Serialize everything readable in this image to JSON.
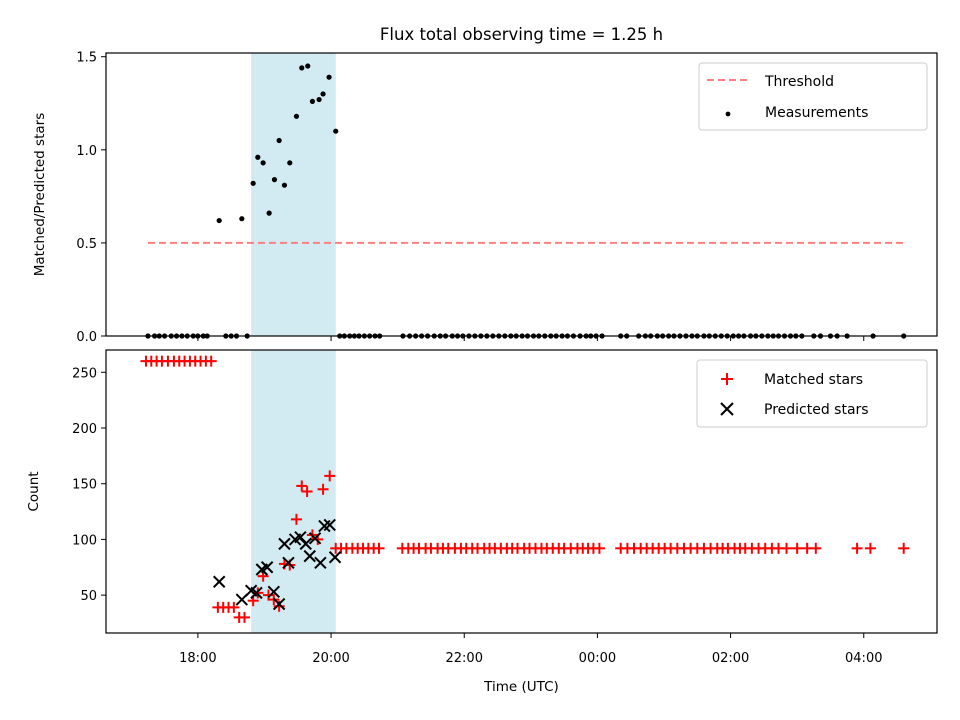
{
  "chart_data": {
    "title": "Flux total observing time = 1.25 h",
    "shared_x": {
      "label": "Time (UTC)",
      "unit": "hours since 00:00 of the first day",
      "range": [
        16.62,
        29.1
      ],
      "ticks": [
        {
          "value": 18,
          "label": "18:00"
        },
        {
          "value": 20,
          "label": "20:00"
        },
        {
          "value": 22,
          "label": "22:00"
        },
        {
          "value": 24,
          "label": "00:00"
        },
        {
          "value": 26,
          "label": "02:00"
        },
        {
          "value": 28,
          "label": "04:00"
        }
      ],
      "highlight_band": [
        18.8,
        20.07
      ]
    },
    "panels": [
      {
        "type": "scatter",
        "ylabel": "Matched/Predicted stars",
        "ylim": [
          0,
          1.52
        ],
        "yticks": [
          {
            "value": 0,
            "label": "0.0"
          },
          {
            "value": 0.5,
            "label": "0.5"
          },
          {
            "value": 1.0,
            "label": "1.0"
          },
          {
            "value": 1.5,
            "label": "1.5"
          }
        ],
        "legend_position": "upper right",
        "series": [
          {
            "name": "Threshold",
            "kind": "dashed-line",
            "color": "#ff7f7f",
            "x": [
              17.25,
              28.6
            ],
            "y": [
              0.5,
              0.5
            ]
          },
          {
            "name": "Measurements",
            "kind": "dot",
            "color": "#000000",
            "x": [
              18.32,
              18.66,
              18.83,
              18.9,
              18.98,
              19.07,
              19.15,
              19.22,
              19.3,
              19.38,
              19.48,
              19.56,
              19.65,
              19.72,
              19.82,
              19.88,
              19.97,
              20.07
            ],
            "y": [
              0.62,
              0.63,
              0.82,
              0.96,
              0.93,
              0.66,
              0.84,
              1.05,
              0.81,
              0.93,
              1.18,
              1.44,
              1.45,
              1.26,
              1.27,
              1.3,
              1.39,
              1.1
            ]
          },
          {
            "name": "",
            "kind": "dot",
            "color": "#000000",
            "x": [
              17.25,
              17.35,
              17.42,
              17.5,
              17.6,
              17.68,
              17.76,
              17.84,
              17.93,
              18.0,
              18.08,
              18.14,
              18.42,
              18.5,
              18.58,
              18.74,
              20.13,
              20.2,
              20.28,
              20.35,
              20.42,
              20.5,
              20.58,
              20.66,
              20.73,
              21.08,
              21.18,
              21.27,
              21.36,
              21.45,
              21.55,
              21.64,
              21.72,
              21.82,
              21.9,
              21.98,
              22.07,
              22.16,
              22.25,
              22.34,
              22.43,
              22.52,
              22.61,
              22.7,
              22.78,
              22.87,
              22.95,
              23.04,
              23.12,
              23.21,
              23.3,
              23.38,
              23.47,
              23.55,
              23.64,
              23.74,
              23.83,
              23.9,
              23.98,
              24.07,
              24.35,
              24.44,
              24.62,
              24.72,
              24.8,
              24.9,
              24.98,
              25.07,
              25.15,
              25.24,
              25.33,
              25.42,
              25.5,
              25.6,
              25.68,
              25.77,
              25.86,
              25.95,
              26.04,
              26.12,
              26.2,
              26.3,
              26.38,
              26.47,
              26.56,
              26.64,
              26.72,
              26.81,
              26.9,
              26.98,
              27.07,
              27.25,
              27.35,
              27.5,
              27.6,
              27.75,
              28.14,
              28.6
            ],
            "y": [
              0,
              0,
              0,
              0,
              0,
              0,
              0,
              0,
              0,
              0,
              0,
              0,
              0,
              0,
              0,
              0,
              0,
              0,
              0,
              0,
              0,
              0,
              0,
              0,
              0,
              0,
              0,
              0,
              0,
              0,
              0,
              0,
              0,
              0,
              0,
              0,
              0,
              0,
              0,
              0,
              0,
              0,
              0,
              0,
              0,
              0,
              0,
              0,
              0,
              0,
              0,
              0,
              0,
              0,
              0,
              0,
              0,
              0,
              0,
              0,
              0,
              0,
              0,
              0,
              0,
              0,
              0,
              0,
              0,
              0,
              0,
              0,
              0,
              0,
              0,
              0,
              0,
              0,
              0,
              0,
              0,
              0,
              0,
              0,
              0,
              0,
              0,
              0,
              0,
              0,
              0,
              0,
              0,
              0,
              0,
              0,
              0,
              0
            ]
          }
        ]
      },
      {
        "type": "scatter",
        "ylabel": "Count",
        "ylim": [
          16,
          270
        ],
        "yticks": [
          {
            "value": 50,
            "label": "50"
          },
          {
            "value": 100,
            "label": "100"
          },
          {
            "value": 150,
            "label": "150"
          },
          {
            "value": 200,
            "label": "200"
          },
          {
            "value": 250,
            "label": "250"
          }
        ],
        "legend_position": "upper right",
        "series": [
          {
            "name": "Matched stars",
            "kind": "plus",
            "color": "#ff0000",
            "x": [
              17.22,
              17.3,
              17.38,
              17.46,
              17.55,
              17.64,
              17.72,
              17.8,
              17.88,
              17.96,
              18.04,
              18.12,
              18.2,
              18.3,
              18.38,
              18.46,
              18.54,
              18.62,
              18.7,
              18.83,
              18.9,
              18.98,
              19.06,
              19.14,
              19.22,
              19.3,
              19.38,
              19.48,
              19.56,
              19.64,
              19.72,
              19.8,
              19.88,
              19.98,
              20.07,
              20.15,
              20.23,
              20.32,
              20.4,
              20.48,
              20.56,
              20.64,
              20.72,
              21.07,
              21.16,
              21.24,
              21.32,
              21.42,
              21.5,
              21.6,
              21.68,
              21.76,
              21.86,
              21.95,
              22.03,
              22.12,
              22.2,
              22.3,
              22.38,
              22.46,
              22.55,
              22.64,
              22.72,
              22.8,
              22.9,
              22.98,
              23.07,
              23.16,
              23.24,
              23.33,
              23.42,
              23.5,
              23.6,
              23.7,
              23.78,
              23.86,
              23.94,
              24.03,
              24.35,
              24.45,
              24.55,
              24.65,
              24.74,
              24.83,
              24.92,
              25.01,
              25.1,
              25.2,
              25.3,
              25.4,
              25.5,
              25.6,
              25.7,
              25.8,
              25.88,
              25.96,
              26.06,
              26.14,
              26.22,
              26.32,
              26.42,
              26.52,
              26.62,
              26.72,
              26.84,
              27.0,
              27.15,
              27.28,
              27.9,
              28.1,
              28.6
            ],
            "y": [
              260,
              260,
              260,
              260,
              260,
              260,
              260,
              260,
              260,
              260,
              260,
              260,
              260,
              39,
              39,
              39,
              39,
              30,
              30,
              45,
              52,
              67,
              50,
              46,
              40,
              78,
              77,
              118,
              148,
              143,
              104,
              100,
              145,
              157,
              92,
              92,
              92,
              92,
              92,
              92,
              92,
              92,
              92,
              92,
              92,
              92,
              92,
              92,
              92,
              92,
              92,
              92,
              92,
              92,
              92,
              92,
              92,
              92,
              92,
              92,
              92,
              92,
              92,
              92,
              92,
              92,
              92,
              92,
              92,
              92,
              92,
              92,
              92,
              92,
              92,
              92,
              92,
              92,
              92,
              92,
              92,
              92,
              92,
              92,
              92,
              92,
              92,
              92,
              92,
              92,
              92,
              92,
              92,
              92,
              92,
              92,
              92,
              92,
              92,
              92,
              92,
              92,
              92,
              92,
              92,
              92,
              92,
              92,
              92,
              92,
              92
            ]
          },
          {
            "name": "Predicted stars",
            "kind": "x",
            "color": "#000000",
            "x": [
              18.32,
              18.66,
              18.8,
              18.88,
              18.96,
              19.04,
              19.14,
              19.22,
              19.3,
              19.36,
              19.46,
              19.54,
              19.62,
              19.68,
              19.76,
              19.84,
              19.9,
              19.98,
              20.06
            ],
            "y": [
              62,
              46,
              54,
              52,
              73,
              75,
              53,
              42,
              96,
              79,
              100,
              102,
              96,
              85,
              101,
              79,
              112,
              113,
              84
            ]
          }
        ]
      }
    ]
  },
  "legend": {
    "top": {
      "threshold": "Threshold",
      "measurements": "Measurements"
    },
    "bottom": {
      "matched": "Matched stars",
      "predicted": "Predicted stars"
    }
  },
  "colors": {
    "band": "#add8e6",
    "threshold": "#ff7f7f",
    "matched": "#ff0000",
    "measure": "#000000"
  }
}
